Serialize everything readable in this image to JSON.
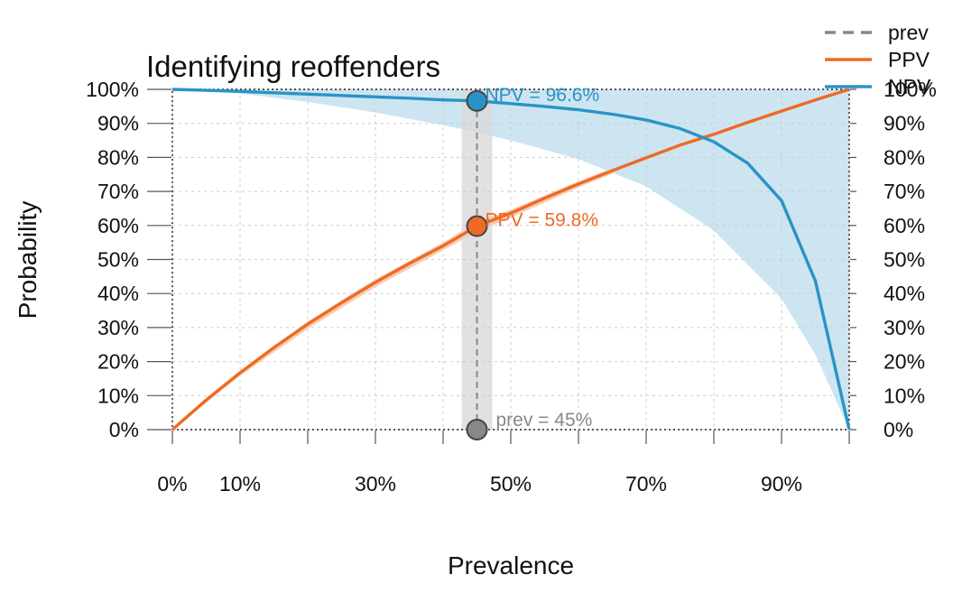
{
  "chart_data": {
    "type": "line",
    "title": "Identifying reoffenders",
    "xlabel": "Prevalence",
    "ylabel": "Probability",
    "xlim": [
      0,
      100
    ],
    "ylim": [
      0,
      100
    ],
    "x_ticks": [
      0,
      10,
      30,
      50,
      70,
      90
    ],
    "x_tick_labels": [
      "0%",
      "10%",
      "30%",
      "50%",
      "70%",
      "90%"
    ],
    "y_ticks": [
      0,
      10,
      20,
      30,
      40,
      50,
      60,
      70,
      80,
      90,
      100
    ],
    "y_tick_labels": [
      "0%",
      "10%",
      "20%",
      "30%",
      "40%",
      "50%",
      "60%",
      "70%",
      "80%",
      "90%",
      "100%"
    ],
    "grid": true,
    "legend": {
      "position": "top-right",
      "entries": [
        {
          "name": "prev",
          "color": "#888888",
          "style": "dashed"
        },
        {
          "name": "PPV",
          "color": "#EE6A24",
          "style": "solid"
        },
        {
          "name": "NPV",
          "color": "#2A93C6",
          "style": "solid"
        }
      ]
    },
    "prevalence": 45,
    "series": [
      {
        "name": "PPV",
        "color": "#EE6A24",
        "x": [
          0,
          5,
          10,
          15,
          20,
          25,
          30,
          35,
          40,
          45,
          50,
          55,
          60,
          65,
          70,
          75,
          80,
          85,
          90,
          95,
          100
        ],
        "values": [
          0,
          8.7,
          16.7,
          24.1,
          31.0,
          37.3,
          43.3,
          48.8,
          54.0,
          59.8,
          63.6,
          68.0,
          72.2,
          76.1,
          79.9,
          83.6,
          86.8,
          90.3,
          93.6,
          96.9,
          100
        ]
      },
      {
        "name": "NPV",
        "color": "#2A93C6",
        "x": [
          0,
          5,
          10,
          15,
          20,
          25,
          30,
          35,
          40,
          45,
          50,
          55,
          60,
          65,
          70,
          75,
          80,
          85,
          90,
          95,
          100
        ],
        "values": [
          100,
          99.7,
          99.4,
          99.0,
          98.6,
          98.2,
          97.8,
          97.4,
          96.9,
          96.6,
          95.8,
          95.0,
          94.0,
          92.7,
          91.0,
          88.5,
          84.6,
          78.3,
          67.3,
          43.7,
          0
        ]
      }
    ],
    "bands": [
      {
        "name": "PPV",
        "color": "#F8C8AC",
        "x": [
          0,
          10,
          20,
          30,
          40,
          45,
          50,
          60,
          70,
          80,
          90,
          100
        ],
        "lower": [
          0,
          15.8,
          29.6,
          41.9,
          52.7,
          58.2,
          62.3,
          71.2,
          79.2,
          86.4,
          93.3,
          100
        ],
        "upper": [
          0,
          17.2,
          31.8,
          44.2,
          55.0,
          61.0,
          64.6,
          73.0,
          80.6,
          87.3,
          93.9,
          100
        ]
      },
      {
        "name": "NPV",
        "color": "#C6E2EF",
        "x": [
          0,
          10,
          20,
          30,
          40,
          45,
          50,
          60,
          70,
          80,
          90,
          95,
          100
        ],
        "lower": [
          100,
          98.8,
          96.3,
          93.2,
          89.5,
          87.4,
          85.0,
          79.5,
          71.5,
          58.5,
          38.5,
          22.0,
          0
        ],
        "upper": [
          100,
          100,
          100,
          100,
          100,
          100,
          100,
          100,
          100,
          100,
          100,
          100,
          100
        ]
      }
    ],
    "points": [
      {
        "name": "NPV",
        "x": 45,
        "y": 96.6,
        "label": "NPV = 96.6%",
        "color": "#2A93C6"
      },
      {
        "name": "PPV",
        "x": 45,
        "y": 59.8,
        "label": "PPV = 59.8%",
        "color": "#EE6A24"
      },
      {
        "name": "prev",
        "x": 45,
        "y": 0,
        "label": "prev = 45%",
        "color": "#888888"
      }
    ]
  }
}
